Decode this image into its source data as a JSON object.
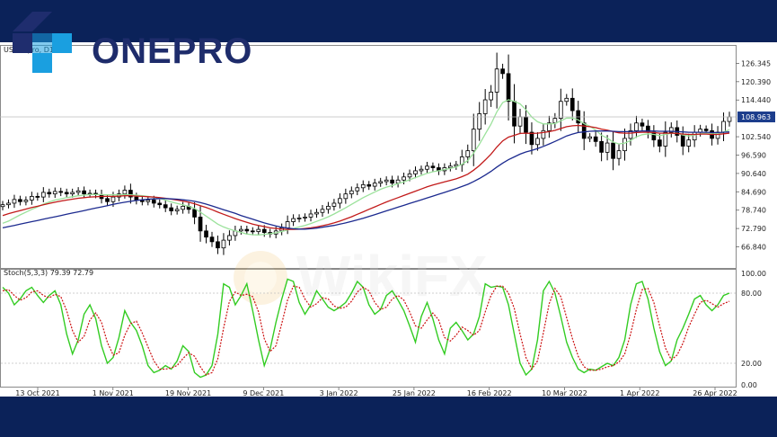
{
  "brand": {
    "logo_text": "ONEPRO",
    "watermark": "WikiFX"
  },
  "colors": {
    "background": "#0b2259",
    "bull_candle": "#ffffff",
    "bear_candle": "#000000",
    "ma_fast": "#9be29b",
    "ma_mid": "#c21a1a",
    "ma_slow": "#1c2a8f",
    "stoch_main": "#33cc22",
    "stoch_signal": "#cc1111",
    "price_tag": "#1c3d8c"
  },
  "chart_data": [
    {
      "type": "candlestick",
      "title": "USOIL.pro, D1",
      "ylim": [
        60,
        132
      ],
      "yticks": [
        "126.345",
        "120.390",
        "114.440",
        "108.963",
        "102.540",
        "96.590",
        "90.640",
        "84.690",
        "78.740",
        "72.790",
        "66.840"
      ],
      "current_price": "108.963",
      "x_labels": [
        "13 Oct 2021",
        "1 Nov 2021",
        "19 Nov 2021",
        "9 Dec 2021",
        "3 Jan 2022",
        "25 Jan 2022",
        "16 Feb 2022",
        "10 Mar 2022",
        "1 Apr 2022",
        "26 Apr 2022"
      ],
      "close": [
        80.5,
        81.0,
        82.2,
        81.5,
        82.0,
        83.2,
        83.0,
        84.5,
        84.0,
        84.8,
        84.5,
        84.0,
        84.5,
        85.0,
        84.0,
        84.2,
        83.8,
        82.5,
        81.5,
        83.0,
        84.0,
        85.2,
        83.0,
        82.0,
        81.5,
        82.0,
        81.0,
        80.5,
        79.5,
        78.5,
        79.0,
        80.0,
        79.0,
        76.5,
        72.0,
        70.0,
        68.5,
        66.5,
        69.0,
        70.5,
        72.0,
        72.5,
        72.0,
        71.8,
        72.5,
        71.5,
        71.0,
        72.0,
        73.0,
        75.0,
        76.0,
        76.2,
        76.5,
        77.5,
        78.0,
        79.0,
        80.0,
        81.0,
        82.5,
        84.0,
        85.0,
        86.0,
        87.0,
        86.5,
        87.5,
        88.0,
        88.5,
        87.5,
        88.5,
        89.5,
        90.5,
        91.5,
        92.0,
        93.0,
        92.5,
        91.5,
        92.5,
        93.0,
        93.5,
        96.0,
        98.0,
        105.0,
        110.0,
        114.5,
        117.0,
        124.5,
        123.0,
        114.0,
        106.0,
        109.0,
        104.0,
        100.0,
        102.0,
        104.5,
        107.0,
        108.5,
        114.0,
        115.0,
        111.0,
        107.0,
        102.0,
        102.5,
        101.0,
        97.5,
        100.5,
        95.5,
        98.0,
        102.0,
        104.5,
        107.0,
        106.0,
        104.0,
        101.5,
        99.5,
        104.0,
        105.5,
        103.0,
        99.5,
        101.5,
        104.0,
        105.0,
        104.5,
        102.0,
        104.0,
        107.5,
        108.96
      ],
      "ma_fast": [
        74.5,
        75.2,
        76.2,
        77.2,
        78.1,
        79.0,
        79.8,
        80.7,
        81.4,
        82.0,
        82.4,
        82.8,
        83.1,
        83.4,
        83.6,
        83.8,
        83.8,
        83.8,
        83.7,
        83.7,
        83.7,
        83.8,
        83.7,
        83.6,
        83.4,
        83.2,
        82.9,
        82.5,
        82.0,
        81.4,
        80.9,
        80.5,
        80.0,
        79.3,
        78.1,
        76.8,
        75.5,
        74.2,
        73.3,
        72.6,
        72.0,
        71.5,
        71.0,
        70.8,
        70.7,
        70.9,
        71.1,
        71.4,
        71.8,
        72.3,
        72.8,
        73.3,
        73.8,
        74.4,
        75.1,
        75.8,
        76.6,
        77.5,
        78.5,
        79.5,
        80.6,
        81.7,
        82.8,
        83.7,
        84.6,
        85.5,
        86.2,
        86.7,
        87.3,
        87.9,
        88.6,
        89.3,
        90.0,
        90.7,
        91.2,
        91.5,
        91.9,
        92.3,
        92.7,
        93.6,
        94.8,
        97.2,
        100.1,
        103.4,
        106.6,
        110.6,
        113.6,
        114.5,
        114.0,
        113.2,
        111.3,
        108.9,
        107.4,
        106.7,
        106.7,
        106.8,
        107.7,
        108.6,
        108.6,
        108.0,
        106.8,
        105.9,
        104.7,
        103.0,
        102.1,
        100.8,
        100.2,
        100.5,
        101.3,
        102.5,
        103.2,
        103.5,
        103.3,
        102.9,
        103.3,
        103.7,
        103.7,
        103.1,
        102.8,
        103.1,
        103.5,
        103.7,
        103.5,
        103.5,
        104.1,
        104.8
      ],
      "ma_mid": [
        77.0,
        77.6,
        78.1,
        78.6,
        79.1,
        79.6,
        80.0,
        80.5,
        80.9,
        81.3,
        81.7,
        82.0,
        82.3,
        82.6,
        82.8,
        83.0,
        83.1,
        83.2,
        83.2,
        83.2,
        83.3,
        83.4,
        83.4,
        83.3,
        83.2,
        83.1,
        83.0,
        82.8,
        82.6,
        82.3,
        82.0,
        81.7,
        81.3,
        80.8,
        80.2,
        79.6,
        78.9,
        78.1,
        77.4,
        76.7,
        76.0,
        75.4,
        74.8,
        74.2,
        73.8,
        73.4,
        73.0,
        72.8,
        72.6,
        72.5,
        72.5,
        72.6,
        72.8,
        73.0,
        73.3,
        73.7,
        74.1,
        74.6,
        75.2,
        75.9,
        76.6,
        77.4,
        78.2,
        79.0,
        79.8,
        80.6,
        81.4,
        82.1,
        82.8,
        83.5,
        84.2,
        84.9,
        85.6,
        86.3,
        86.9,
        87.4,
        87.9,
        88.4,
        88.9,
        89.6,
        90.4,
        91.7,
        93.2,
        95.0,
        96.9,
        99.2,
        101.2,
        102.4,
        103.0,
        103.6,
        103.7,
        103.6,
        103.7,
        103.9,
        104.2,
        104.6,
        105.2,
        105.8,
        106.1,
        106.2,
        106.0,
        105.8,
        105.5,
        105.0,
        104.7,
        104.2,
        103.8,
        103.7,
        103.7,
        103.9,
        104.0,
        104.0,
        103.9,
        103.7,
        103.7,
        103.7,
        103.6,
        103.4,
        103.3,
        103.3,
        103.4,
        103.4,
        103.3,
        103.3,
        103.5,
        103.7
      ],
      "ma_slow": [
        73.0,
        73.4,
        73.8,
        74.2,
        74.6,
        75.0,
        75.4,
        75.8,
        76.2,
        76.6,
        77.0,
        77.4,
        77.8,
        78.2,
        78.6,
        79.0,
        79.4,
        79.8,
        80.2,
        80.6,
        81.0,
        81.3,
        81.6,
        81.9,
        82.1,
        82.3,
        82.4,
        82.5,
        82.5,
        82.4,
        82.3,
        82.1,
        81.9,
        81.6,
        81.2,
        80.7,
        80.1,
        79.5,
        78.9,
        78.3,
        77.7,
        77.0,
        76.4,
        75.8,
        75.2,
        74.6,
        74.1,
        73.6,
        73.2,
        72.9,
        72.7,
        72.6,
        72.6,
        72.7,
        72.9,
        73.2,
        73.5,
        73.8,
        74.2,
        74.6,
        75.1,
        75.6,
        76.1,
        76.7,
        77.3,
        77.9,
        78.5,
        79.1,
        79.7,
        80.3,
        80.9,
        81.5,
        82.1,
        82.7,
        83.3,
        83.9,
        84.5,
        85.1,
        85.7,
        86.4,
        87.1,
        88.0,
        89.0,
        90.1,
        91.3,
        92.7,
        94.0,
        95.1,
        96.0,
        96.9,
        97.6,
        98.1,
        98.7,
        99.4,
        100.2,
        101.0,
        101.9,
        102.8,
        103.4,
        103.9,
        104.1,
        104.3,
        104.4,
        104.4,
        104.4,
        104.3,
        104.2,
        104.2,
        104.2,
        104.3,
        104.4,
        104.4,
        104.4,
        104.3,
        104.3,
        104.3,
        104.2,
        104.1,
        104.0,
        104.0,
        104.0,
        104.0,
        103.9,
        103.9,
        104.0,
        104.1
      ]
    },
    {
      "type": "line",
      "title": "Stoch(5,3,3) 79.39 72.79",
      "ylim": [
        0,
        100
      ],
      "yticks": [
        "100.00",
        "80.00",
        "20.00",
        "0.00"
      ],
      "series": [
        {
          "name": "main",
          "values": [
            85,
            80,
            70,
            75,
            82,
            85,
            78,
            72,
            78,
            82,
            70,
            45,
            28,
            40,
            62,
            70,
            58,
            35,
            20,
            25,
            42,
            65,
            55,
            48,
            35,
            18,
            12,
            14,
            18,
            15,
            22,
            35,
            30,
            12,
            8,
            10,
            18,
            45,
            88,
            85,
            70,
            78,
            88,
            65,
            40,
            18,
            32,
            55,
            75,
            92,
            90,
            72,
            62,
            70,
            82,
            75,
            68,
            65,
            68,
            72,
            80,
            90,
            85,
            70,
            62,
            66,
            78,
            82,
            74,
            65,
            52,
            38,
            60,
            72,
            58,
            40,
            28,
            50,
            55,
            48,
            40,
            45,
            60,
            88,
            85,
            86,
            85,
            70,
            45,
            20,
            10,
            15,
            40,
            82,
            90,
            80,
            60,
            38,
            25,
            15,
            12,
            15,
            14,
            17,
            20,
            18,
            25,
            40,
            70,
            88,
            90,
            75,
            50,
            30,
            18,
            22,
            40,
            50,
            62,
            75,
            78,
            70,
            65,
            70,
            78,
            80
          ]
        },
        {
          "name": "signal",
          "values": [
            82,
            83,
            78,
            74,
            76,
            81,
            82,
            78,
            76,
            79,
            77,
            65,
            48,
            38,
            43,
            57,
            63,
            55,
            38,
            27,
            29,
            44,
            54,
            56,
            46,
            34,
            22,
            15,
            15,
            16,
            18,
            24,
            29,
            26,
            17,
            10,
            12,
            24,
            50,
            73,
            81,
            78,
            79,
            77,
            64,
            41,
            30,
            35,
            54,
            74,
            86,
            85,
            75,
            68,
            71,
            76,
            75,
            69,
            67,
            68,
            73,
            81,
            85,
            82,
            72,
            66,
            68,
            75,
            78,
            74,
            64,
            52,
            50,
            57,
            63,
            57,
            42,
            39,
            44,
            51,
            48,
            44,
            48,
            64,
            78,
            86,
            86,
            80,
            67,
            45,
            25,
            15,
            22,
            46,
            71,
            84,
            77,
            59,
            41,
            26,
            17,
            14,
            14,
            15,
            17,
            18,
            21,
            28,
            45,
            66,
            83,
            84,
            72,
            52,
            33,
            23,
            27,
            37,
            51,
            62,
            72,
            74,
            71,
            68,
            71,
            73
          ]
        }
      ]
    }
  ]
}
